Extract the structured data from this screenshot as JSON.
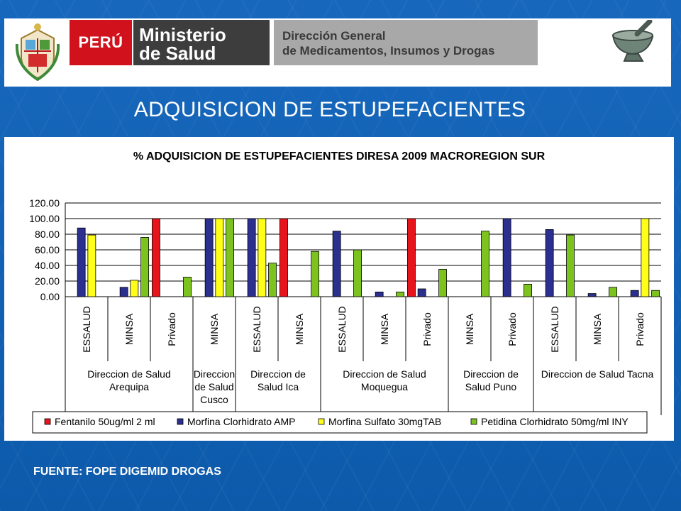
{
  "header": {
    "peru_label": "PERÚ",
    "ministry_line1": "Ministerio",
    "ministry_line2": "de Salud",
    "directorate_line1": "Dirección General",
    "directorate_line2": "de Medicamentos, Insumos y Drogas"
  },
  "slide_title": "ADQUISICION DE ESTUPEFACIENTES",
  "source": "FUENTE: FOPE DIGEMID DROGAS",
  "chart_data": {
    "type": "bar",
    "title": "% ADQUISICION DE ESTUPEFACIENTES DIRESA 2009 MACROREGION SUR",
    "xlabel": "",
    "ylabel": "",
    "ylim": [
      0,
      120
    ],
    "yticks": [
      "0.00",
      "20.00",
      "40.00",
      "60.00",
      "80.00",
      "100.00",
      "120.00"
    ],
    "grid": true,
    "legend_position": "bottom",
    "categories": [
      "ESSALUD",
      "MINSA",
      "Privado",
      "MINSA",
      "ESSALUD",
      "MINSA",
      "ESSALUD",
      "MINSA",
      "Privado",
      "MINSA",
      "Privado",
      "ESSALUD",
      "MINSA",
      "Privado"
    ],
    "groups": [
      {
        "label": "Direccion de Salud Arequipa",
        "span": 3
      },
      {
        "label": "Direccion de Salud Cusco",
        "span": 1
      },
      {
        "label": "Direccion de Salud Ica",
        "span": 2
      },
      {
        "label": "Direccion de Salud Moquegua",
        "span": 3
      },
      {
        "label": "Direccion de Salud Puno",
        "span": 2
      },
      {
        "label": "Direccion de Salud Tacna",
        "span": 3
      }
    ],
    "series": [
      {
        "name": "Fentanilo 50ug/ml 2 ml",
        "color": "#e8141b",
        "values": [
          null,
          null,
          100,
          null,
          null,
          100,
          null,
          null,
          100,
          null,
          null,
          null,
          null,
          null
        ]
      },
      {
        "name": "Morfina Clorhidrato AMP",
        "color": "#2b2f8f",
        "values": [
          88,
          12,
          null,
          100,
          100,
          null,
          84,
          6,
          10,
          null,
          100,
          86,
          4,
          8
        ]
      },
      {
        "name": "Morfina Sulfato 30mgTAB",
        "color": "#ffff19",
        "values": [
          79,
          21,
          null,
          100,
          100,
          null,
          null,
          null,
          null,
          null,
          null,
          null,
          null,
          100
        ]
      },
      {
        "name": "Petidina Clorhidrato 50mg/ml INY",
        "color": "#7dc31f",
        "values": [
          null,
          76,
          25,
          100,
          43,
          58,
          60,
          6,
          35,
          84,
          16,
          79,
          12,
          8
        ]
      }
    ]
  }
}
